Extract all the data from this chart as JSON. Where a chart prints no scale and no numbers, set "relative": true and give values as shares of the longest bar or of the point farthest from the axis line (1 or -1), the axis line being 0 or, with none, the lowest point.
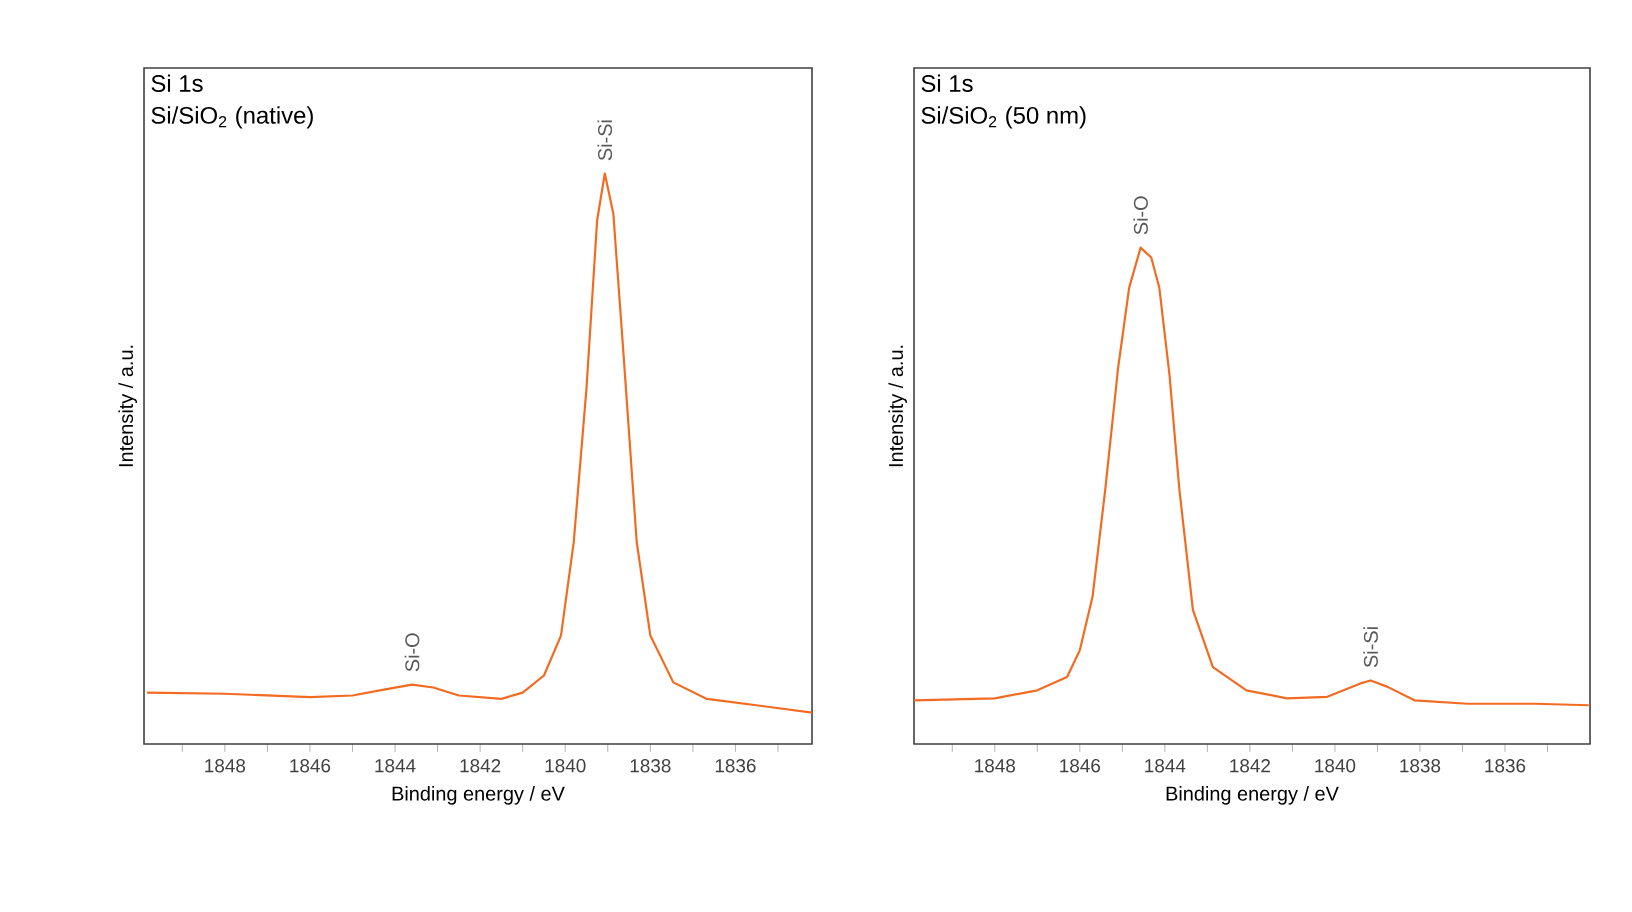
{
  "chart_data": [
    {
      "type": "line",
      "title": "Si 1s",
      "subtitle": "Si/SiO$_{2}$ (native)",
      "xlabel": "Binding energy / eV",
      "ylabel": "Intensity / a.u.",
      "relative": true,
      "xlim": [
        1849.9,
        1834.2
      ],
      "xticks": [
        {
          "value": 1849,
          "label": null
        },
        1848,
        {
          "value": 1847,
          "label": null
        },
        1846,
        {
          "value": 1845,
          "label": null
        },
        1844,
        {
          "value": 1843,
          "label": null
        },
        1842,
        {
          "value": 1841,
          "label": null
        },
        1840,
        {
          "value": 1839,
          "label": null
        },
        1838,
        {
          "value": 1837,
          "label": null
        },
        1836,
        {
          "value": 1835,
          "label": null
        }
      ],
      "series": [
        {
          "color": "#f26b22",
          "x": [
            1849.83,
            1848.0,
            1846.0,
            1845.0,
            1844.2,
            1843.6,
            1843.1,
            1842.5,
            1841.5,
            1841.0,
            1840.5,
            1840.1,
            1839.8,
            1839.5,
            1839.25,
            1839.07,
            1838.87,
            1838.63,
            1838.32,
            1838.0,
            1837.46,
            1836.67,
            1835.42,
            1834.2
          ],
          "values": [
            0.09,
            0.088,
            0.082,
            0.085,
            0.096,
            0.104,
            0.099,
            0.085,
            0.079,
            0.09,
            0.12,
            0.19,
            0.354,
            0.624,
            0.918,
            1.0,
            0.93,
            0.683,
            0.354,
            0.19,
            0.108,
            0.079,
            0.067,
            0.055
          ]
        }
      ],
      "annotations": [
        "Si-O",
        "Si-Si"
      ]
    },
    {
      "type": "line",
      "title": "Si 1s",
      "subtitle": "Si/SiO$_{2}$ (50 nm)",
      "xlabel": "Binding energy / eV",
      "ylabel": "Intensity / a.u.",
      "relative": true,
      "xlim": [
        1849.9,
        1834.0
      ],
      "xticks": [
        {
          "value": 1849,
          "label": null
        },
        1848,
        {
          "value": 1847,
          "label": null
        },
        1846,
        {
          "value": 1845,
          "label": null
        },
        1844,
        {
          "value": 1843,
          "label": null
        },
        1842,
        {
          "value": 1841,
          "label": null
        },
        1840,
        {
          "value": 1839,
          "label": null
        },
        1838,
        {
          "value": 1837,
          "label": null
        },
        1836,
        {
          "value": 1835,
          "label": null
        }
      ],
      "series": [
        {
          "color": "#f26b22",
          "x": [
            1849.9,
            1848.0,
            1847.0,
            1846.3,
            1846.0,
            1845.7,
            1845.4,
            1845.1,
            1844.84,
            1844.57,
            1844.32,
            1844.13,
            1843.89,
            1843.66,
            1843.34,
            1842.87,
            1842.08,
            1841.13,
            1840.18,
            1839.4,
            1839.16,
            1838.76,
            1838.13,
            1836.87,
            1835.29,
            1834.03
          ],
          "values": [
            0.088,
            0.092,
            0.108,
            0.135,
            0.189,
            0.297,
            0.514,
            0.757,
            0.919,
            1.0,
            0.98,
            0.919,
            0.743,
            0.514,
            0.27,
            0.155,
            0.108,
            0.092,
            0.095,
            0.122,
            0.128,
            0.115,
            0.088,
            0.081,
            0.081,
            0.078
          ]
        }
      ],
      "annotations": [
        "Si-O",
        "Si-Si"
      ]
    }
  ]
}
